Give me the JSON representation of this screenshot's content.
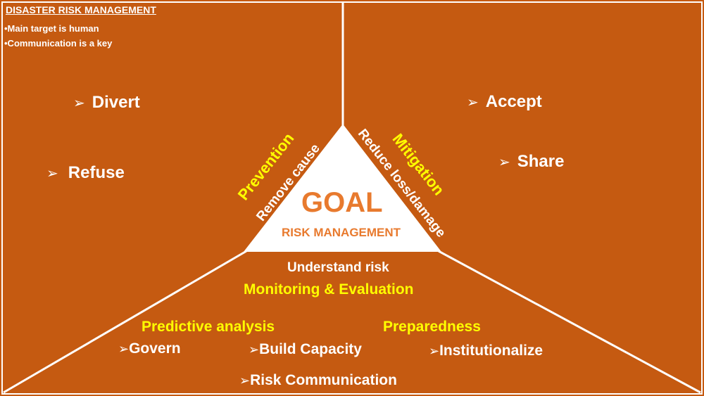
{
  "header": {
    "title": "DISASTER RISK MANAGEMENT",
    "bullets": [
      "•Main target is human",
      "•Communication is a key"
    ]
  },
  "left_region": {
    "items": [
      "Divert",
      "Refuse"
    ]
  },
  "right_region": {
    "items": [
      "Accept",
      "Share"
    ]
  },
  "center": {
    "goal": "GOAL",
    "subtitle": "RISK MANAGEMENT"
  },
  "left_edge": {
    "title": "Prevention",
    "subtitle": "Remove cause"
  },
  "right_edge": {
    "title": "Mitigation",
    "subtitle": "Reduce loss/damage"
  },
  "bottom_region": {
    "understand": "Understand risk",
    "monitoring": "Monitoring & Evaluation",
    "predictive": "Predictive analysis",
    "preparedness": "Preparedness",
    "items": [
      "Govern",
      "Build Capacity",
      "Institutionalize",
      "Risk Communication"
    ]
  },
  "arrow_glyph": "➢",
  "colors": {
    "background": "#c55a11",
    "lines": "#ffffff",
    "highlight": "#ffff00",
    "goal_text": "#e87a2e"
  }
}
